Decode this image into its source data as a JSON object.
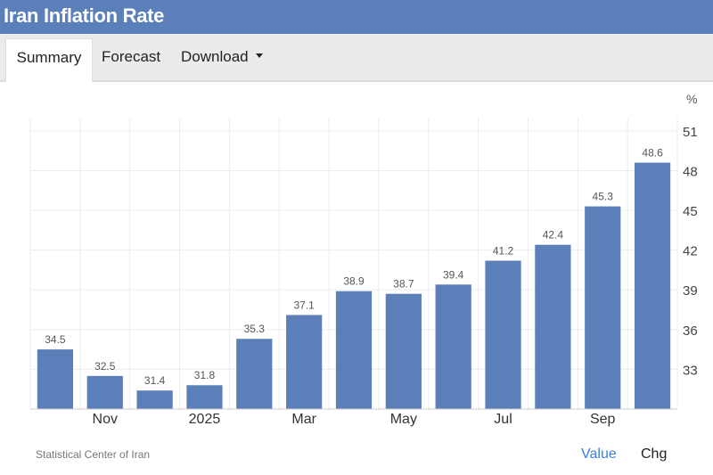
{
  "header": {
    "title": "Iran Inflation Rate"
  },
  "tabs": [
    {
      "label": "Summary"
    },
    {
      "label": "Forecast"
    },
    {
      "label": "Download"
    }
  ],
  "footer": {
    "source": "Statistical Center of Iran",
    "value_toggle": "Value",
    "chg_toggle": "Chg"
  },
  "colors": {
    "bar": "#5b7fb8",
    "header": "#5b7fb8",
    "link": "#3d7ee0"
  },
  "chart_data": {
    "type": "bar",
    "title": "Iran Inflation Rate",
    "unit_label": "%",
    "ylim": [
      30,
      52
    ],
    "y_ticks": [
      33,
      36,
      39,
      42,
      45,
      48,
      51
    ],
    "x_tick_labels": [
      {
        "index": 1,
        "label": "Nov"
      },
      {
        "index": 3,
        "label": "2025"
      },
      {
        "index": 5,
        "label": "Mar"
      },
      {
        "index": 7,
        "label": "May"
      },
      {
        "index": 9,
        "label": "Jul"
      },
      {
        "index": 11,
        "label": "Sep"
      }
    ],
    "values": [
      34.5,
      32.5,
      31.4,
      31.8,
      35.3,
      37.1,
      38.9,
      38.7,
      39.4,
      41.2,
      42.4,
      45.3,
      48.6
    ],
    "labels": [
      "34.5",
      "32.5",
      "31.4",
      "31.8",
      "35.3",
      "37.1",
      "38.9",
      "38.7",
      "39.4",
      "41.2",
      "42.4",
      "45.3",
      "48.6"
    ],
    "grid": true,
    "y_axis_side": "right"
  }
}
